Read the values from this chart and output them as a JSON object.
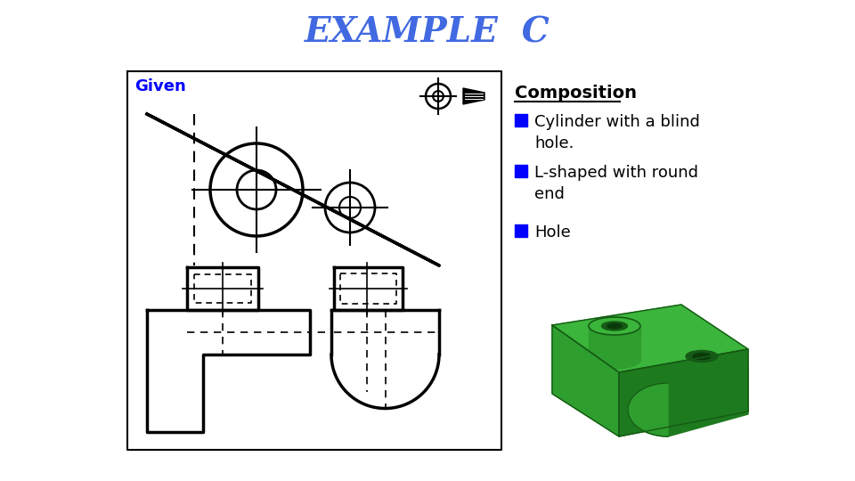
{
  "title": "EXAMPLE  C",
  "title_color": "#4169E1",
  "title_fontsize": 28,
  "given_label": "Given",
  "given_color": "#0000FF",
  "composition_title": "Composition",
  "composition_items": [
    "Cylinder with a blind\nhole.",
    "L-shaped with round\nend",
    "Hole"
  ],
  "bullet_color": "#0000FF",
  "bg_color": "#FFFFFF",
  "line_color": "#000000"
}
